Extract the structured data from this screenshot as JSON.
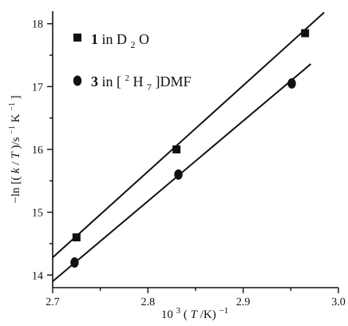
{
  "chart_data": {
    "type": "scatter",
    "x_axis": {
      "label_parts": [
        "10",
        "3",
        "(",
        "T",
        "/K)",
        "−1"
      ],
      "label_text": "10³(T/K)⁻¹",
      "range": [
        2.7,
        3.0
      ],
      "ticks": [
        2.7,
        2.8,
        2.9,
        3.0
      ],
      "tick_labels": [
        "2.7",
        "2.8",
        "2.9",
        "3.0"
      ],
      "minor_ticks": [
        2.75,
        2.85,
        2.95
      ]
    },
    "y_axis": {
      "label_parts": [
        "−ln [(",
        "k",
        "/",
        "T",
        ")/s",
        "−1",
        " K",
        "−1",
        "]"
      ],
      "label_text": "−ln [(k/T)/s⁻¹ K⁻¹]",
      "range": [
        13.8,
        18.2
      ],
      "ticks": [
        14,
        15,
        16,
        17,
        18
      ],
      "tick_labels": [
        "14",
        "15",
        "16",
        "17",
        "18"
      ],
      "minor_ticks": [
        14.5,
        15.5,
        16.5,
        17.5
      ]
    },
    "series": [
      {
        "name": "1 in D₂O",
        "label_parts": [
          "1",
          " in D",
          "2",
          "O"
        ],
        "marker": "square",
        "color": "#111111",
        "points": [
          {
            "x": 2.725,
            "y": 14.6
          },
          {
            "x": 2.83,
            "y": 16.0
          },
          {
            "x": 2.965,
            "y": 17.85
          }
        ],
        "fit_line": [
          {
            "x": 2.7,
            "y": 14.28
          },
          {
            "x": 2.985,
            "y": 18.18
          }
        ]
      },
      {
        "name": "3 in [²H₇]DMF",
        "label_parts": [
          "3",
          " in [",
          "2",
          "H",
          "7",
          "]DMF"
        ],
        "marker": "circle",
        "color": "#111111",
        "points": [
          {
            "x": 2.723,
            "y": 14.2
          },
          {
            "x": 2.832,
            "y": 15.6
          },
          {
            "x": 2.951,
            "y": 17.05
          }
        ],
        "fit_line": [
          {
            "x": 2.7,
            "y": 13.9
          },
          {
            "x": 2.971,
            "y": 17.36
          }
        ]
      }
    ],
    "legend": "top-left",
    "grid": false
  }
}
